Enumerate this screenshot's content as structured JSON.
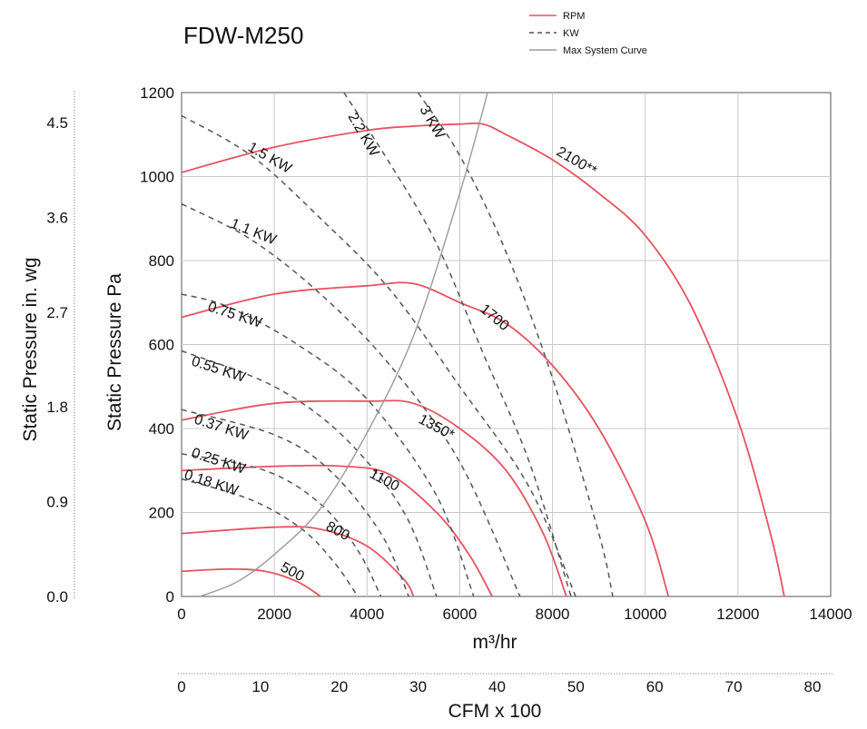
{
  "chart_data": {
    "type": "line",
    "title": "FDW-M250",
    "xlabel": "m³/hr",
    "ylabel": "Static Pressure Pa",
    "y2label": "Static Pressure in. wg",
    "x2label": "CFM x 100",
    "xlim": [
      0,
      14000
    ],
    "ylim": [
      0,
      1200
    ],
    "x_ticks": [
      "0",
      "2000",
      "4000",
      "6000",
      "8000",
      "10000",
      "12000",
      "14000"
    ],
    "y_ticks": [
      "0",
      "200",
      "400",
      "600",
      "800",
      "1000",
      "1200"
    ],
    "y2_ticks": [
      "0.0",
      "0.9",
      "1.8",
      "2.7",
      "3.6",
      "4.5"
    ],
    "x2_ticks": [
      "0",
      "10",
      "20",
      "30",
      "40",
      "50",
      "60",
      "70",
      "80"
    ],
    "grid": true,
    "legend_position": "top-right",
    "legend": [
      {
        "label": "RPM",
        "style": "solid",
        "color": "#e8525f"
      },
      {
        "label": "KW",
        "style": "dashed",
        "color": "#555555"
      },
      {
        "label": "Max System Curve",
        "style": "solid",
        "color": "#9a9a9a"
      }
    ],
    "series": [
      {
        "kind": "rpm",
        "label": "500",
        "x": [
          0,
          1000,
          1800,
          2500,
          3000
        ],
        "y": [
          60,
          65,
          60,
          35,
          0
        ]
      },
      {
        "kind": "rpm",
        "label": "800",
        "x": [
          0,
          2000,
          3000,
          4000,
          4800,
          5000
        ],
        "y": [
          150,
          165,
          160,
          120,
          40,
          0
        ]
      },
      {
        "kind": "rpm",
        "label": "1100",
        "x": [
          0,
          2000,
          3500,
          4500,
          5500,
          6200,
          6700
        ],
        "y": [
          300,
          310,
          310,
          290,
          200,
          100,
          0
        ]
      },
      {
        "kind": "rpm",
        "label": "1350*",
        "x": [
          0,
          2000,
          4000,
          5000,
          6000,
          7000,
          7800,
          8300
        ],
        "y": [
          420,
          460,
          465,
          460,
          400,
          300,
          150,
          0
        ]
      },
      {
        "kind": "rpm",
        "label": "1700",
        "x": [
          0,
          2000,
          4000,
          5000,
          6000,
          7000,
          8000,
          9000,
          10000,
          10500
        ],
        "y": [
          665,
          720,
          740,
          745,
          700,
          650,
          550,
          400,
          180,
          0
        ]
      },
      {
        "kind": "rpm",
        "label": "2100**",
        "x": [
          0,
          2000,
          4000,
          5000,
          6000,
          6500,
          7000,
          8000,
          9000,
          10000,
          11000,
          12000,
          12700,
          13000
        ],
        "y": [
          1010,
          1070,
          1110,
          1120,
          1125,
          1125,
          1100,
          1040,
          960,
          860,
          690,
          420,
          150,
          0
        ]
      },
      {
        "kind": "kw",
        "label": "0.18 KW",
        "x": [
          0,
          1500,
          2600,
          3300,
          3800
        ],
        "y": [
          280,
          230,
          160,
          80,
          0
        ]
      },
      {
        "kind": "kw",
        "label": "0.25 KW",
        "x": [
          0,
          1800,
          3000,
          3800,
          4300
        ],
        "y": [
          340,
          300,
          220,
          110,
          0
        ]
      },
      {
        "kind": "kw",
        "label": "0.37 KW",
        "x": [
          0,
          2000,
          3200,
          4300,
          4900
        ],
        "y": [
          445,
          385,
          300,
          150,
          0
        ]
      },
      {
        "kind": "kw",
        "label": "0.55 KW",
        "x": [
          0,
          2000,
          3500,
          4800,
          5500
        ],
        "y": [
          585,
          500,
          380,
          200,
          0
        ]
      },
      {
        "kind": "kw",
        "label": "0.75 KW",
        "x": [
          0,
          1000,
          2500,
          4000,
          5500,
          6300
        ],
        "y": [
          720,
          690,
          600,
          470,
          240,
          0
        ]
      },
      {
        "kind": "kw",
        "label": "1.1 KW",
        "x": [
          0,
          1500,
          3000,
          4500,
          6000,
          7300
        ],
        "y": [
          935,
          850,
          720,
          550,
          320,
          0
        ]
      },
      {
        "kind": "kw",
        "label": "1.5 KW",
        "x": [
          0,
          1500,
          3000,
          4500,
          6000,
          7500,
          8500
        ],
        "y": [
          1145,
          1050,
          900,
          730,
          500,
          260,
          0
        ]
      },
      {
        "kind": "kw",
        "label": "2.2 KW",
        "x": [
          3500,
          4500,
          5500,
          6500,
          7500,
          8400
        ],
        "y": [
          1200,
          1030,
          840,
          580,
          320,
          0
        ]
      },
      {
        "kind": "kw",
        "label": "3 KW",
        "x": [
          5100,
          6000,
          7000,
          8000,
          9000,
          9300
        ],
        "y": [
          1200,
          1050,
          820,
          520,
          150,
          0
        ]
      },
      {
        "kind": "system",
        "label": "Max System Curve",
        "x": [
          400,
          1200,
          2000,
          3000,
          4000,
          5000,
          6000,
          6600
        ],
        "y": [
          0,
          35,
          100,
          210,
          390,
          620,
          960,
          1200
        ]
      }
    ]
  }
}
